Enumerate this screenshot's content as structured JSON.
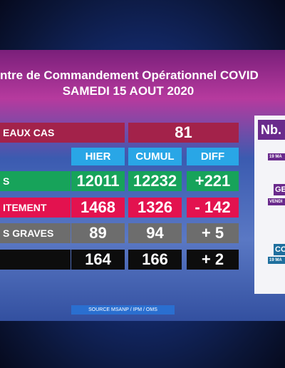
{
  "header": {
    "title": "ntre de Commandement Opérationnel COVID",
    "date": "SAMEDI 15 AOUT 2020"
  },
  "new_cases": {
    "label": "EAUX CAS",
    "value": 81
  },
  "table": {
    "columns": [
      "HIER",
      "CUMUL",
      "DIFF"
    ],
    "rows": [
      [
        "S",
        12011,
        12232,
        "+221"
      ],
      [
        "ITEMENT",
        1468,
        1326,
        "- 142"
      ],
      [
        "S GRAVES",
        89,
        94,
        "+ 5"
      ],
      [
        null,
        164,
        166,
        "+ 2"
      ]
    ]
  },
  "source": "SOURCE MSANP / IPM / OMS",
  "side_panel": {
    "title": "Nb.",
    "items": [
      "19 MA",
      "GE",
      "VENDI",
      "CO",
      "19 MA"
    ]
  }
}
